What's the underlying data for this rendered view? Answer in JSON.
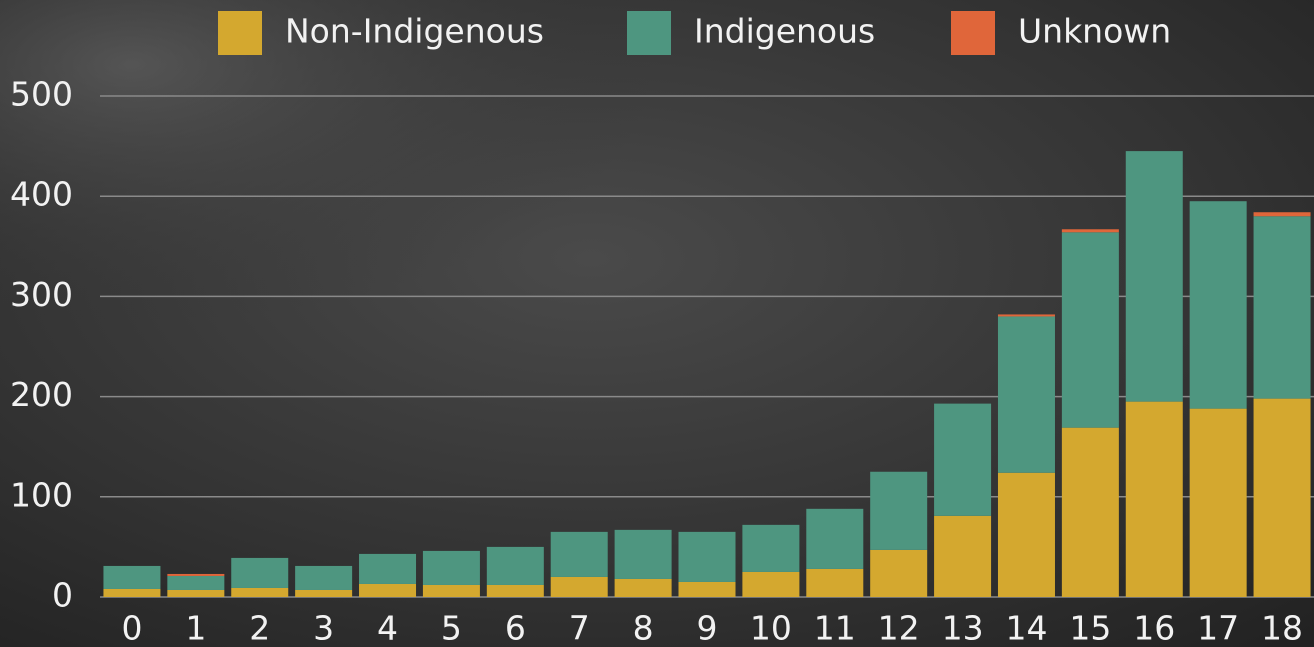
{
  "chart_data": {
    "type": "stacked_bar",
    "categories": [
      "0",
      "1",
      "2",
      "3",
      "4",
      "5",
      "6",
      "7",
      "8",
      "9",
      "10",
      "11",
      "12",
      "13",
      "14",
      "15",
      "16",
      "17",
      "18"
    ],
    "series": [
      {
        "name": "Non-Indigenous",
        "color": "#d4a82f",
        "values": [
          8,
          7,
          9,
          7,
          13,
          12,
          12,
          20,
          18,
          15,
          25,
          28,
          47,
          81,
          124,
          169,
          195,
          188,
          198
        ]
      },
      {
        "name": "Indigenous",
        "color": "#4e9680",
        "values": [
          23,
          14,
          30,
          24,
          30,
          34,
          38,
          45,
          49,
          50,
          47,
          60,
          78,
          112,
          156,
          195,
          250,
          207,
          182
        ]
      },
      {
        "name": "Unknown",
        "color": "#e0663a",
        "values": [
          0,
          2,
          0,
          0,
          0,
          0,
          0,
          0,
          0,
          0,
          0,
          0,
          0,
          0,
          2,
          3,
          0,
          0,
          4
        ]
      }
    ],
    "ylim": [
      0,
      500
    ],
    "yticks": [
      0,
      100,
      200,
      300,
      400,
      500
    ],
    "grid": true,
    "legend": "top"
  }
}
